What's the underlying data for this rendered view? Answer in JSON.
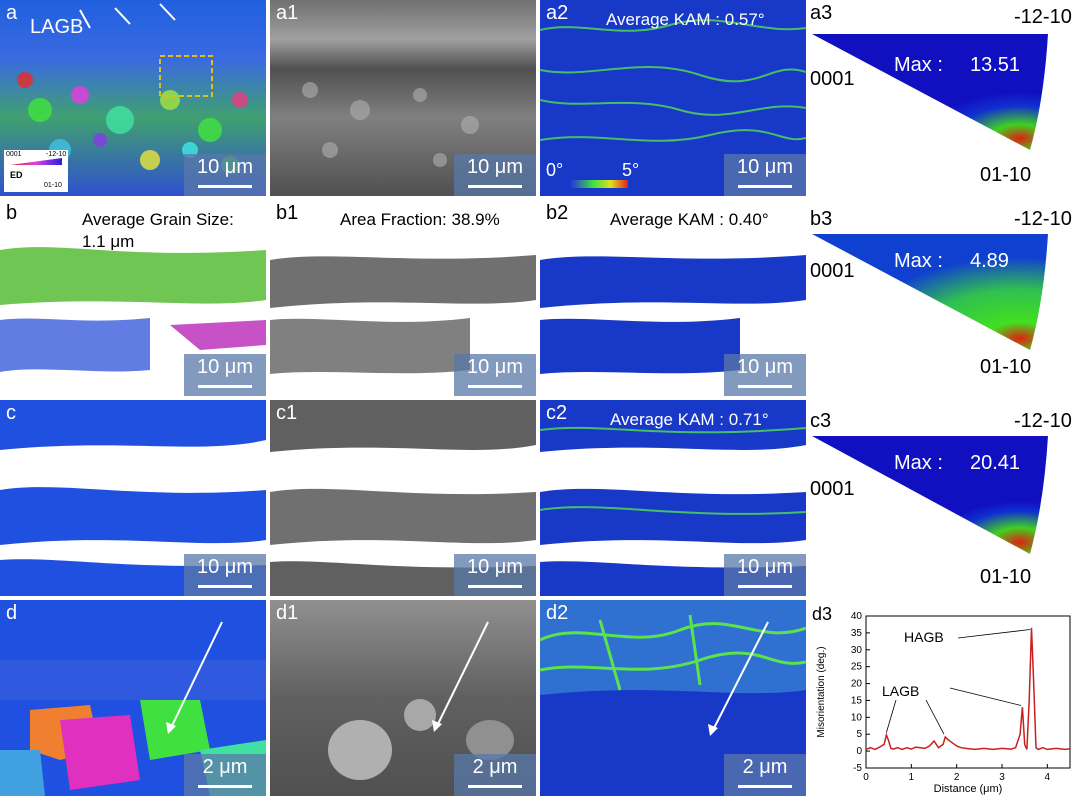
{
  "panels": {
    "a": {
      "label": "a",
      "note": "LAGB",
      "legend_left": "0001",
      "legend_right": "-12-10",
      "legend_bottom": "01-10",
      "legend_axis": "ED",
      "scale": "10 μm"
    },
    "a1": {
      "label": "a1",
      "scale": "10 μm"
    },
    "a2": {
      "label": "a2",
      "note": "Average KAM : 0.57°",
      "bar_min": "0°",
      "bar_max": "5°",
      "scale": "10 μm"
    },
    "a3": {
      "label": "a3",
      "top": "-12-10",
      "left": "0001",
      "bottom": "01-10",
      "max_label": "Max :",
      "max_value": "13.51"
    },
    "b": {
      "label": "b",
      "note": "Average Grain Size:",
      "note2": "1.1 μm",
      "scale": "10 μm"
    },
    "b1": {
      "label": "b1",
      "note": "Area Fraction: 38.9%",
      "scale": "10 μm"
    },
    "b2": {
      "label": "b2",
      "note": "Average KAM : 0.40°",
      "scale": "10 μm"
    },
    "b3": {
      "label": "b3",
      "top": "-12-10",
      "left": "0001",
      "bottom": "01-10",
      "max_label": "Max :",
      "max_value": "4.89"
    },
    "c": {
      "label": "c",
      "scale": "10 μm"
    },
    "c1": {
      "label": "c1",
      "scale": "10 μm"
    },
    "c2": {
      "label": "c2",
      "note": "Average KAM : 0.71°",
      "scale": "10 μm"
    },
    "c3": {
      "label": "c3",
      "top": "-12-10",
      "left": "0001",
      "bottom": "01-10",
      "max_label": "Max :",
      "max_value": "20.41"
    },
    "d": {
      "label": "d",
      "scale": "2 μm"
    },
    "d1": {
      "label": "d1",
      "scale": "2 μm"
    },
    "d2": {
      "label": "d2",
      "scale": "2 μm"
    },
    "d3": {
      "label": "d3"
    }
  },
  "colors": {
    "ipf_blue": "#1010d0",
    "ipf_green": "#20c020",
    "ipf_red": "#e02010",
    "kam_blue": "#1030c0",
    "kam_green": "#40e040",
    "plot_line": "#c82020"
  },
  "chart_data": {
    "type": "line",
    "xlabel": "Distance (μm)",
    "ylabel": "Misorientation (deg.)",
    "xlim": [
      0,
      4.5
    ],
    "ylim": [
      -5,
      40
    ],
    "xticks": [
      0,
      1,
      2,
      3,
      4
    ],
    "yticks": [
      -5,
      0,
      5,
      10,
      15,
      20,
      25,
      30,
      35,
      40
    ],
    "annotations": [
      "HAGB",
      "LAGB"
    ],
    "series": [
      {
        "x": [
          0,
          0.1,
          0.2,
          0.3,
          0.4,
          0.45,
          0.5,
          0.55,
          0.6,
          0.7,
          0.8,
          0.9,
          1.0,
          1.1,
          1.2,
          1.3,
          1.4,
          1.5,
          1.6,
          1.7,
          1.75,
          1.8,
          1.9,
          2.0,
          2.1,
          2.2,
          2.4,
          2.6,
          2.8,
          3.0,
          3.2,
          3.3,
          3.4,
          3.45,
          3.5,
          3.55,
          3.6,
          3.65,
          3.7,
          3.75,
          3.8,
          3.9,
          4.0,
          4.2,
          4.4,
          4.5
        ],
        "y": [
          0.5,
          1.0,
          0.5,
          1.2,
          2.0,
          4.8,
          3.0,
          0.8,
          0.6,
          1.0,
          0.5,
          1.0,
          0.6,
          1.2,
          1.0,
          0.8,
          1.5,
          3.0,
          1.0,
          2.0,
          4.2,
          3.5,
          2.5,
          1.5,
          1.0,
          0.8,
          0.5,
          0.8,
          0.5,
          0.8,
          0.6,
          1.0,
          5.0,
          13.0,
          2.0,
          0.5,
          15.0,
          36.5,
          20.0,
          1.0,
          0.5,
          1.0,
          0.5,
          0.8,
          0.5,
          0.7
        ]
      }
    ]
  }
}
